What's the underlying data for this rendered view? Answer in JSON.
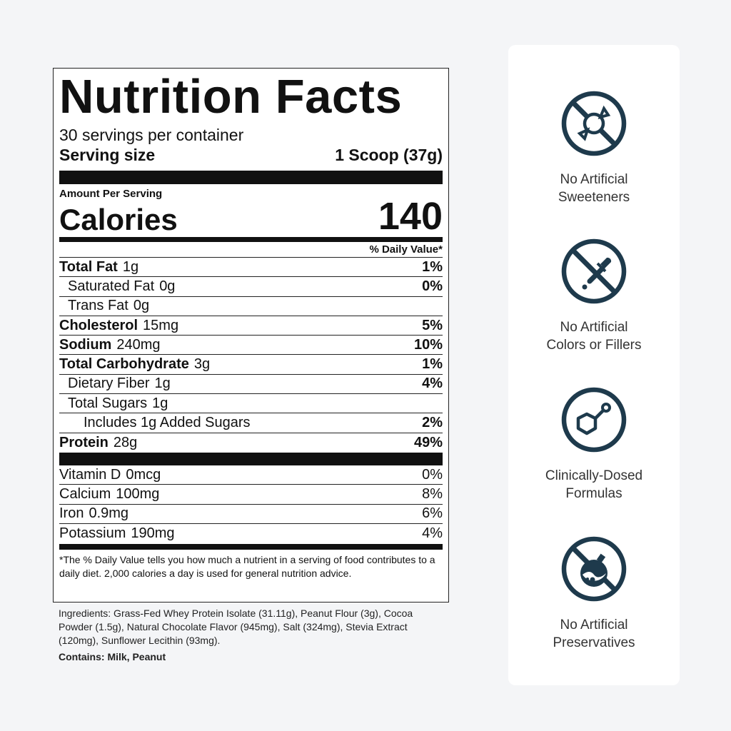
{
  "label": {
    "title": "Nutrition Facts",
    "servings": "30 servings per container",
    "serving_size_label": "Serving size",
    "serving_size_value": "1 Scoop (37g)",
    "amount_per_serving": "Amount Per Serving",
    "calories_label": "Calories",
    "calories_value": "140",
    "dv_header": "% Daily Value*",
    "nutrients": [
      {
        "name": "Total Fat",
        "amount": "1g",
        "dv": "1%",
        "bold": true,
        "indent": 0
      },
      {
        "name": "Saturated Fat",
        "amount": "0g",
        "dv": "0%",
        "bold": false,
        "indent": 1
      },
      {
        "name": "Trans Fat",
        "amount": "0g",
        "dv": "",
        "bold": false,
        "indent": 1
      },
      {
        "name": "Cholesterol",
        "amount": "15mg",
        "dv": "5%",
        "bold": true,
        "indent": 0
      },
      {
        "name": "Sodium",
        "amount": "240mg",
        "dv": "10%",
        "bold": true,
        "indent": 0
      },
      {
        "name": "Total Carbohydrate",
        "amount": "3g",
        "dv": "1%",
        "bold": true,
        "indent": 0
      },
      {
        "name": "Dietary Fiber",
        "amount": "1g",
        "dv": "4%",
        "bold": false,
        "indent": 1
      },
      {
        "name": "Total Sugars",
        "amount": "1g",
        "dv": "",
        "bold": false,
        "indent": 1
      },
      {
        "name": "Includes 1g Added Sugars",
        "amount": "",
        "dv": "2%",
        "bold": false,
        "indent": 2
      },
      {
        "name": "Protein",
        "amount": "28g",
        "dv": "49%",
        "bold": true,
        "indent": 0
      }
    ],
    "vitamins": [
      {
        "name": "Vitamin D",
        "amount": "0mcg",
        "dv": "0%"
      },
      {
        "name": "Calcium",
        "amount": "100mg",
        "dv": "8%"
      },
      {
        "name": "Iron",
        "amount": "0.9mg",
        "dv": "6%"
      },
      {
        "name": "Potassium",
        "amount": "190mg",
        "dv": "4%"
      }
    ],
    "footnote": "*The % Daily Value tells you how much a nutrient in a serving of food contributes to a daily diet. 2,000 calories a day is used for general nutrition advice."
  },
  "ingredients": "Ingredients: Grass-Fed Whey Protein Isolate (31.11g), Peanut Flour (3g), Cocoa Powder (1.5g), Natural Chocolate Flavor (945mg), Salt (324mg), Stevia Extract (120mg), Sunflower Lecithin (93mg).",
  "contains": "Contains: Milk, Peanut",
  "icon_color": "#1e3a4c",
  "features": [
    {
      "icon": "no-candy-icon",
      "line1": "No Artificial",
      "line2": "Sweeteners"
    },
    {
      "icon": "no-dropper-icon",
      "line1": "No Artificial",
      "line2": "Colors or Fillers"
    },
    {
      "icon": "molecule-icon",
      "line1": "Clinically-Dosed",
      "line2": "Formulas"
    },
    {
      "icon": "no-flask-icon",
      "line1": "No Artificial",
      "line2": "Preservatives"
    }
  ]
}
